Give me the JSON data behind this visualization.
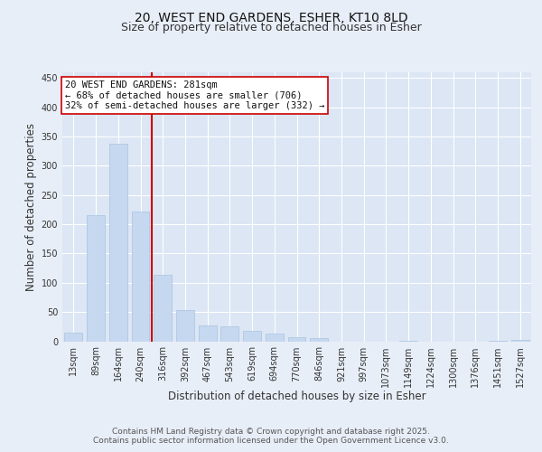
{
  "title_line1": "20, WEST END GARDENS, ESHER, KT10 8LD",
  "title_line2": "Size of property relative to detached houses in Esher",
  "xlabel": "Distribution of detached houses by size in Esher",
  "ylabel": "Number of detached properties",
  "categories": [
    "13sqm",
    "89sqm",
    "164sqm",
    "240sqm",
    "316sqm",
    "392sqm",
    "467sqm",
    "543sqm",
    "619sqm",
    "694sqm",
    "770sqm",
    "846sqm",
    "921sqm",
    "997sqm",
    "1073sqm",
    "1149sqm",
    "1224sqm",
    "1300sqm",
    "1376sqm",
    "1451sqm",
    "1527sqm"
  ],
  "values": [
    14,
    216,
    338,
    222,
    113,
    54,
    27,
    25,
    18,
    13,
    7,
    5,
    0,
    0,
    0,
    1,
    0,
    0,
    0,
    1,
    3
  ],
  "bar_color": "#c5d8f0",
  "bar_edge_color": "#aac4e0",
  "vline_x": 3.5,
  "vline_color": "#cc0000",
  "annotation_text": "20 WEST END GARDENS: 281sqm\n← 68% of detached houses are smaller (706)\n32% of semi-detached houses are larger (332) →",
  "annotation_box_color": "#ffffff",
  "annotation_box_edge": "#cc0000",
  "bg_color": "#e8eef7",
  "plot_bg_color": "#dce6f4",
  "grid_color": "#ffffff",
  "ylim": [
    0,
    460
  ],
  "yticks": [
    0,
    50,
    100,
    150,
    200,
    250,
    300,
    350,
    400,
    450
  ],
  "footer_line1": "Contains HM Land Registry data © Crown copyright and database right 2025.",
  "footer_line2": "Contains public sector information licensed under the Open Government Licence v3.0.",
  "title_fontsize": 10,
  "subtitle_fontsize": 9,
  "tick_fontsize": 7,
  "label_fontsize": 8.5,
  "annotation_fontsize": 7.5,
  "footer_fontsize": 6.5
}
